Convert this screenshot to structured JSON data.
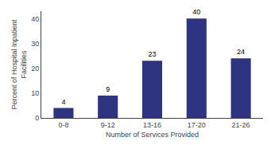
{
  "chart_data": {
    "type": "bar",
    "categories": [
      "0-8",
      "9-12",
      "13-16",
      "17-20",
      "21-26"
    ],
    "values": [
      4,
      9,
      23,
      40,
      24
    ],
    "color": "#2e3480",
    "xlabel": "Number of Services Provided",
    "ylabel": "Percent of Hospital Inpatient\nFacilities",
    "ylim": [
      0,
      43
    ],
    "yticks": [
      0,
      10,
      20,
      30,
      40
    ],
    "grid": false,
    "data_labels": true
  }
}
